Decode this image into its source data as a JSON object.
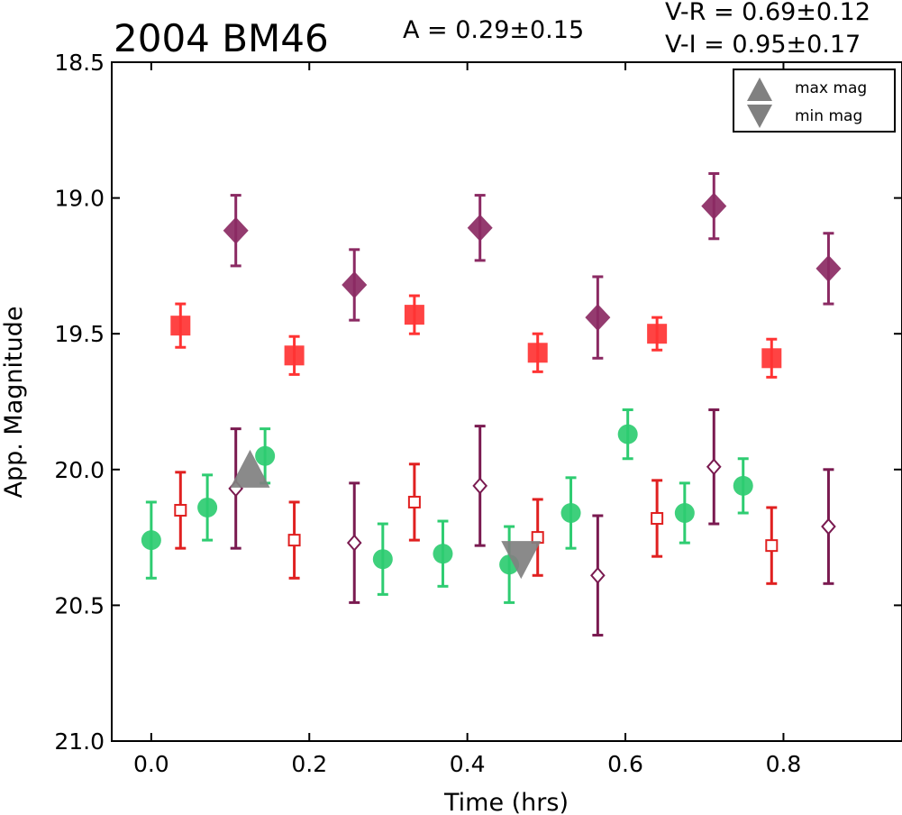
{
  "chart_data": {
    "type": "scatter",
    "title": "2004 BM46",
    "amplitude_text": "A  = 0.29±0.15",
    "color_index_1": "V-R = 0.69±0.12",
    "color_index_2": "V-I  = 0.95±0.17",
    "xlabel": "Time (hrs)",
    "ylabel": "App. Magnitude",
    "xlim": [
      -0.05,
      0.95
    ],
    "ylim": [
      21.0,
      18.5
    ],
    "y_inverted": true,
    "grid": false,
    "xticks": [
      0.0,
      0.2,
      0.4,
      0.6,
      0.8
    ],
    "xtick_labels": [
      "0.0",
      "0.2",
      "0.4",
      "0.6",
      "0.8"
    ],
    "yticks": [
      18.5,
      19.0,
      19.5,
      20.0,
      20.5,
      21.0
    ],
    "ytick_labels": [
      "18.5",
      "19.0",
      "19.5",
      "20.0",
      "20.5",
      "21.0"
    ],
    "legend": {
      "position": "top-right",
      "entries": [
        {
          "label": "max mag",
          "marker": "triangle-up"
        },
        {
          "label": "min mag",
          "marker": "triangle-down"
        }
      ]
    },
    "series": [
      {
        "marker": "square-filled",
        "color": "#ff3333",
        "points": [
          {
            "x": 0.037,
            "y": 19.47,
            "err": 0.08
          },
          {
            "x": 0.181,
            "y": 19.58,
            "err": 0.07
          },
          {
            "x": 0.333,
            "y": 19.43,
            "err": 0.07
          },
          {
            "x": 0.489,
            "y": 19.57,
            "err": 0.07
          },
          {
            "x": 0.64,
            "y": 19.5,
            "err": 0.06
          },
          {
            "x": 0.785,
            "y": 19.59,
            "err": 0.07
          }
        ]
      },
      {
        "marker": "diamond-filled",
        "color": "#8b2a63",
        "points": [
          {
            "x": 0.107,
            "y": 19.12,
            "err": 0.13
          },
          {
            "x": 0.257,
            "y": 19.32,
            "err": 0.13
          },
          {
            "x": 0.416,
            "y": 19.11,
            "err": 0.12
          },
          {
            "x": 0.565,
            "y": 19.44,
            "err": 0.15
          },
          {
            "x": 0.712,
            "y": 19.03,
            "err": 0.12
          },
          {
            "x": 0.857,
            "y": 19.26,
            "err": 0.13
          }
        ]
      },
      {
        "marker": "circle-filled",
        "color": "#2ecc71",
        "points": [
          {
            "x": 0.0,
            "y": 20.26,
            "err": 0.14
          },
          {
            "x": 0.071,
            "y": 20.14,
            "err": 0.12
          },
          {
            "x": 0.144,
            "y": 19.95,
            "err": 0.1
          },
          {
            "x": 0.293,
            "y": 20.33,
            "err": 0.13
          },
          {
            "x": 0.369,
            "y": 20.31,
            "err": 0.12
          },
          {
            "x": 0.453,
            "y": 20.35,
            "err": 0.14
          },
          {
            "x": 0.531,
            "y": 20.16,
            "err": 0.13
          },
          {
            "x": 0.603,
            "y": 19.87,
            "err": 0.09
          },
          {
            "x": 0.675,
            "y": 20.16,
            "err": 0.11
          },
          {
            "x": 0.749,
            "y": 20.06,
            "err": 0.1
          }
        ]
      },
      {
        "marker": "square-open",
        "color": "#e02020",
        "points": [
          {
            "x": 0.037,
            "y": 20.15,
            "err": 0.14
          },
          {
            "x": 0.181,
            "y": 20.26,
            "err": 0.14
          },
          {
            "x": 0.333,
            "y": 20.12,
            "err": 0.14
          },
          {
            "x": 0.489,
            "y": 20.25,
            "err": 0.14
          },
          {
            "x": 0.64,
            "y": 20.18,
            "err": 0.14
          },
          {
            "x": 0.785,
            "y": 20.28,
            "err": 0.14
          }
        ]
      },
      {
        "marker": "diamond-open",
        "color": "#7a1a50",
        "points": [
          {
            "x": 0.107,
            "y": 20.07,
            "err": 0.22
          },
          {
            "x": 0.257,
            "y": 20.27,
            "err": 0.22
          },
          {
            "x": 0.416,
            "y": 20.06,
            "err": 0.22
          },
          {
            "x": 0.565,
            "y": 20.39,
            "err": 0.22
          },
          {
            "x": 0.712,
            "y": 19.99,
            "err": 0.21
          },
          {
            "x": 0.857,
            "y": 20.21,
            "err": 0.21
          }
        ]
      },
      {
        "marker": "triangle-up",
        "color": "#808080",
        "role": "max mag",
        "points": [
          {
            "x": 0.125,
            "y": 20.02
          }
        ]
      },
      {
        "marker": "triangle-down",
        "color": "#808080",
        "role": "min mag",
        "points": [
          {
            "x": 0.468,
            "y": 20.31
          }
        ]
      }
    ]
  }
}
